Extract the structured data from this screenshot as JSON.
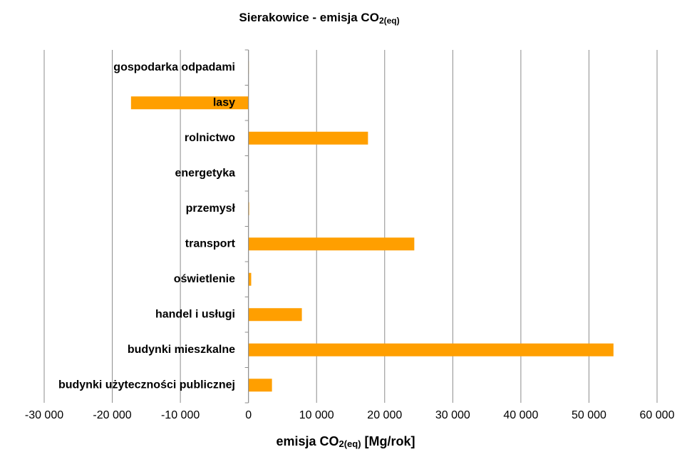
{
  "chart_data": {
    "type": "barh",
    "title": "Sierakowice - emisja CO",
    "title_subscript": "2(eq)",
    "xlabel": "emisja CO",
    "xlabel_subscript": "2(eq)",
    "xlabel_unit": " [Mg/rok]",
    "categories": [
      "budynki użyteczności publicznej",
      "budynki mieszkalne",
      "handel i usługi",
      "oświetlenie",
      "transport",
      "przemysł",
      "energetyka",
      "rolnictwo",
      "lasy",
      "gospodarka odpadami"
    ],
    "values": [
      3450,
      53600,
      7840,
      400,
      24350,
      100,
      0,
      17550,
      -17250,
      50
    ],
    "color": "#ff9f00",
    "xlim": [
      -30000,
      60000
    ],
    "xticks": [
      {
        "value": -30000,
        "label": "-30 000"
      },
      {
        "value": -20000,
        "label": "-20 000"
      },
      {
        "value": -10000,
        "label": "-10 000"
      },
      0,
      {
        "value": 10000,
        "label": "10 000"
      },
      {
        "value": 20000,
        "label": "20 000"
      },
      {
        "value": 30000,
        "label": "30 000"
      },
      {
        "value": 40000,
        "label": "40 000"
      },
      {
        "value": 50000,
        "label": "50 000"
      },
      {
        "value": 60000,
        "label": "60 000"
      }
    ],
    "grid": true
  }
}
